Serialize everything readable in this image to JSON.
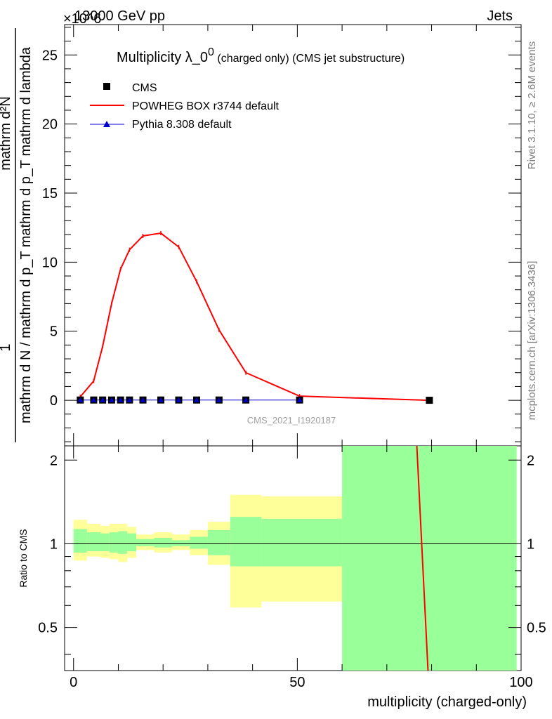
{
  "header": {
    "left": "13000 GeV pp",
    "right": "Jets",
    "exponent": "×10^6"
  },
  "sidebar": {
    "rivet": "Rivet 3.1.10, ≥ 2.6M events",
    "mcplots": "mcplots.cern.ch [arXiv:1306.3436]"
  },
  "watermark": "CMS_2021_I1920187",
  "chart_data": [
    {
      "type": "line",
      "title_main": "Multiplicity λ_0",
      "title_sup": "0",
      "title_sub": " (charged only) (CMS jet substructure)",
      "ylabel_numerator": "1",
      "ylabel_denominator": "mathrm d N / mathrm d p_T mathrm d p_T mathrm d lambda",
      "ylabel_numerator_right": "mathrm d²N",
      "ylim": [
        -3.3,
        27.2
      ],
      "yticks": [
        0,
        5,
        10,
        15,
        20,
        25
      ],
      "ytick_labels": [
        "0",
        "5",
        "10",
        "15",
        "20",
        "25"
      ],
      "xlim": [
        -2,
        100
      ],
      "series": [
        {
          "name": "CMS",
          "color": "#000000",
          "marker": "square",
          "x": [
            1.5,
            4.5,
            6.5,
            8.5,
            10.5,
            12.5,
            15.5,
            19.5,
            23.5,
            27.5,
            32.5,
            38.5,
            50.5,
            79.5
          ],
          "y": [
            0.02,
            0.02,
            0.02,
            0.02,
            0.02,
            0.02,
            0.02,
            0.02,
            0.02,
            0.02,
            0.02,
            0.02,
            0.02,
            0.0
          ]
        },
        {
          "name": "POWHEG BOX r3744 default",
          "color": "#ff0000",
          "marker": "line",
          "x": [
            1.5,
            4.5,
            6.5,
            8.5,
            10.5,
            12.5,
            15.5,
            19.5,
            23.5,
            27.5,
            32.5,
            38.5,
            50.5,
            79.5
          ],
          "y": [
            0.25,
            1.4,
            3.9,
            7.0,
            9.5,
            10.9,
            11.9,
            12.1,
            11.1,
            8.6,
            5.1,
            2.0,
            0.3,
            0.0
          ]
        },
        {
          "name": "Pythia 8.308 default",
          "color": "#0000cc",
          "marker": "triangle",
          "x": [
            1.5,
            4.5,
            6.5,
            8.5,
            10.5,
            12.5,
            15.5,
            19.5,
            23.5,
            27.5,
            32.5,
            38.5,
            50.5
          ],
          "y": [
            0.02,
            0.02,
            0.02,
            0.02,
            0.02,
            0.02,
            0.02,
            0.02,
            0.02,
            0.02,
            0.02,
            0.02,
            0.02
          ]
        }
      ]
    },
    {
      "type": "area",
      "ylabel": "Ratio to CMS",
      "xlabel": "multiplicity (charged-only)",
      "ylim": [
        0.35,
        2.25
      ],
      "xlim": [
        -2,
        100
      ],
      "yticks": [
        0.5,
        1,
        2
      ],
      "ytick_labels": [
        "0.5",
        "1",
        "2"
      ],
      "xticks": [
        0,
        50,
        100
      ],
      "xtick_labels": [
        "0",
        "50",
        "100"
      ],
      "bands": [
        {
          "x0": 0,
          "x1": 3,
          "yellow": [
            0.87,
            1.22
          ],
          "green": [
            0.93,
            1.13
          ]
        },
        {
          "x0": 3,
          "x1": 6,
          "yellow": [
            0.9,
            1.18
          ],
          "green": [
            0.94,
            1.1
          ]
        },
        {
          "x0": 6,
          "x1": 8,
          "yellow": [
            0.89,
            1.16
          ],
          "green": [
            0.94,
            1.09
          ]
        },
        {
          "x0": 8,
          "x1": 10,
          "yellow": [
            0.88,
            1.18
          ],
          "green": [
            0.93,
            1.1
          ]
        },
        {
          "x0": 10,
          "x1": 12,
          "yellow": [
            0.86,
            1.18
          ],
          "green": [
            0.92,
            1.11
          ]
        },
        {
          "x0": 12,
          "x1": 14,
          "yellow": [
            0.89,
            1.15
          ],
          "green": [
            0.94,
            1.09
          ]
        },
        {
          "x0": 14,
          "x1": 18,
          "yellow": [
            0.95,
            1.08
          ],
          "green": [
            0.98,
            1.04
          ]
        },
        {
          "x0": 18,
          "x1": 22,
          "yellow": [
            0.93,
            1.1
          ],
          "green": [
            0.97,
            1.05
          ]
        },
        {
          "x0": 22,
          "x1": 26,
          "yellow": [
            0.95,
            1.08
          ],
          "green": [
            0.98,
            1.03
          ]
        },
        {
          "x0": 26,
          "x1": 30,
          "yellow": [
            0.91,
            1.12
          ],
          "green": [
            0.96,
            1.06
          ]
        },
        {
          "x0": 30,
          "x1": 35,
          "yellow": [
            0.84,
            1.2
          ],
          "green": [
            0.91,
            1.12
          ]
        },
        {
          "x0": 35,
          "x1": 42,
          "yellow": [
            0.59,
            1.5
          ],
          "green": [
            0.83,
            1.25
          ]
        },
        {
          "x0": 42,
          "x1": 60,
          "yellow": [
            0.62,
            1.48
          ],
          "green": [
            0.83,
            1.23
          ]
        },
        {
          "x0": 60,
          "x1": 99,
          "yellow": [
            0.35,
            2.25
          ],
          "green": [
            0.35,
            2.25
          ]
        }
      ],
      "ratio_line": {
        "name": "POWHEG BOX r3744 default",
        "color": "#ff0000",
        "x": [
          76.7,
          79.2
        ],
        "y": [
          2.25,
          0.35
        ]
      }
    }
  ]
}
